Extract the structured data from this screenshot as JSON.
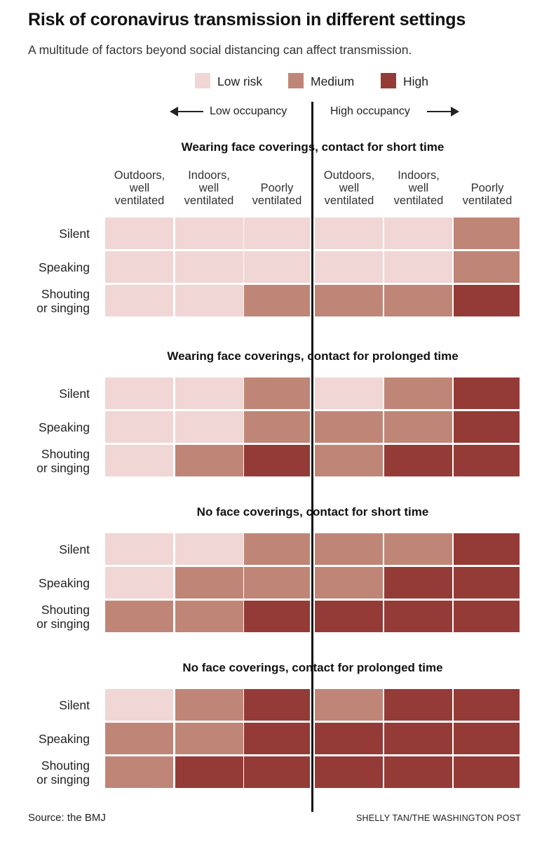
{
  "chart_data": {
    "type": "heatmap",
    "title": "Risk of coronavirus transmission in different settings",
    "subtitle": "A multitude of factors beyond social distancing can affect transmission.",
    "legend": [
      {
        "key": "low",
        "label": "Low risk",
        "color": "#f0d6d4"
      },
      {
        "key": "medium",
        "label": "Medium",
        "color": "#bf8678"
      },
      {
        "key": "high",
        "label": "High",
        "color": "#943b38"
      }
    ],
    "occupancy": {
      "low": "Low occupancy",
      "high": "High occupancy"
    },
    "columns": [
      {
        "occupancy": "low",
        "lines": [
          "Outdoors,",
          "well",
          "ventilated"
        ]
      },
      {
        "occupancy": "low",
        "lines": [
          "Indoors,",
          "well",
          "ventilated"
        ]
      },
      {
        "occupancy": "low",
        "lines": [
          "",
          "Poorly",
          "ventilated"
        ]
      },
      {
        "occupancy": "high",
        "lines": [
          "Outdoors,",
          "well",
          "ventilated"
        ]
      },
      {
        "occupancy": "high",
        "lines": [
          "Indoors,",
          "well",
          "ventilated"
        ]
      },
      {
        "occupancy": "high",
        "lines": [
          "",
          "Poorly",
          "ventilated"
        ]
      }
    ],
    "rows": [
      {
        "lines": [
          "Silent"
        ]
      },
      {
        "lines": [
          "Speaking"
        ]
      },
      {
        "lines": [
          "Shouting",
          "or singing"
        ]
      }
    ],
    "panels": [
      {
        "title": "Wearing face coverings, contact for short time",
        "values": [
          [
            "low",
            "low",
            "low",
            "low",
            "low",
            "medium"
          ],
          [
            "low",
            "low",
            "low",
            "low",
            "low",
            "medium"
          ],
          [
            "low",
            "low",
            "medium",
            "medium",
            "medium",
            "high"
          ]
        ]
      },
      {
        "title": "Wearing face coverings, contact for prolonged time",
        "values": [
          [
            "low",
            "low",
            "medium",
            "low",
            "medium",
            "high"
          ],
          [
            "low",
            "low",
            "medium",
            "medium",
            "medium",
            "high"
          ],
          [
            "low",
            "medium",
            "high",
            "medium",
            "high",
            "high"
          ]
        ]
      },
      {
        "title": "No face coverings, contact for short time",
        "values": [
          [
            "low",
            "low",
            "medium",
            "medium",
            "medium",
            "high"
          ],
          [
            "low",
            "medium",
            "medium",
            "medium",
            "high",
            "high"
          ],
          [
            "medium",
            "medium",
            "high",
            "high",
            "high",
            "high"
          ]
        ]
      },
      {
        "title": "No face coverings, contact for prolonged time",
        "values": [
          [
            "low",
            "medium",
            "high",
            "medium",
            "high",
            "high"
          ],
          [
            "medium",
            "medium",
            "high",
            "high",
            "high",
            "high"
          ],
          [
            "medium",
            "high",
            "high",
            "high",
            "high",
            "high"
          ]
        ]
      }
    ]
  },
  "footer": {
    "source": "Source: the BMJ",
    "credit": "SHELLY TAN/THE WASHINGTON POST"
  }
}
